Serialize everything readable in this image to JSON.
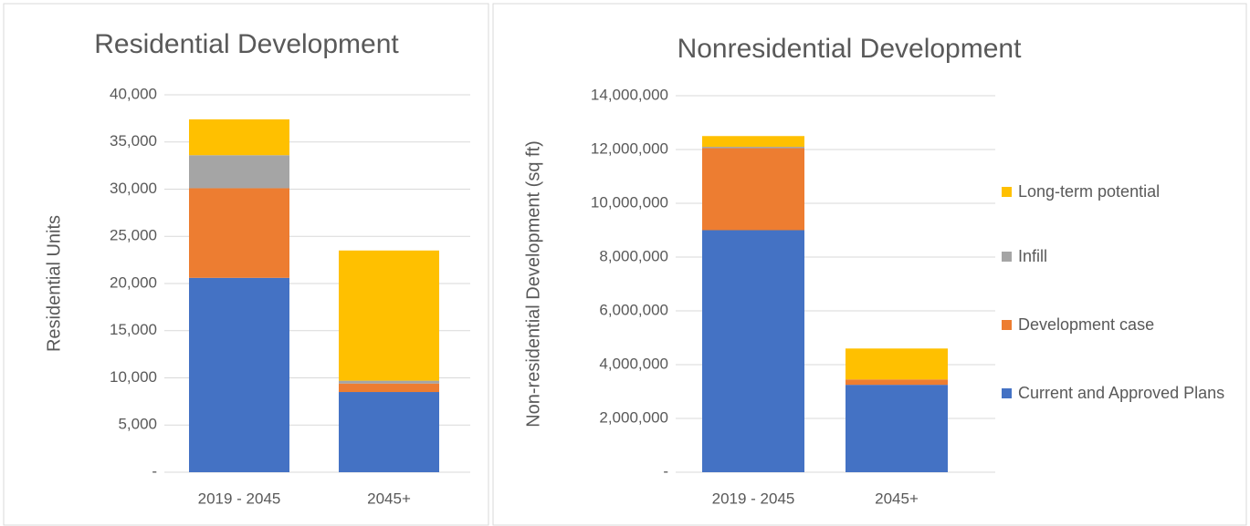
{
  "chart_data": [
    {
      "type": "stacked_bar",
      "title": "Residential Development",
      "y_label": "Residential Units",
      "categories": [
        "2019 - 2045",
        "2045+"
      ],
      "series": [
        {
          "color": "#4472c4",
          "values": [
            20600,
            8500
          ]
        },
        {
          "color": "#ed7d31",
          "values": [
            9500,
            900
          ]
        },
        {
          "color": "#a5a5a5",
          "values": [
            3500,
            300
          ]
        },
        {
          "color": "#ffc000",
          "values": [
            3800,
            13800
          ]
        }
      ],
      "ylim": [
        0,
        40000
      ],
      "yticks": [
        {
          "value": 0,
          "label": "-"
        },
        {
          "value": 5000,
          "label": "5,000"
        },
        {
          "value": 10000,
          "label": "10,000"
        },
        {
          "value": 15000,
          "label": "15,000"
        },
        {
          "value": 20000,
          "label": "20,000"
        },
        {
          "value": 25000,
          "label": "25,000"
        },
        {
          "value": 30000,
          "label": "30,000"
        },
        {
          "value": 35000,
          "label": "35,000"
        },
        {
          "value": 40000,
          "label": "40,000"
        }
      ],
      "grid": true
    },
    {
      "type": "stacked_bar",
      "title": "Nonresidential Development",
      "y_label": "Non-residential Development (sq ft)",
      "categories": [
        "2019 - 2045",
        "2045+"
      ],
      "series": [
        {
          "name": "Current and Approved Plans",
          "color": "#4472c4",
          "values": [
            9000000,
            3250000
          ]
        },
        {
          "name": "Development case",
          "color": "#ed7d31",
          "values": [
            3050000,
            200000
          ]
        },
        {
          "name": "Infill",
          "color": "#a5a5a5",
          "values": [
            50000,
            0
          ]
        },
        {
          "name": "Long-term potential",
          "color": "#ffc000",
          "values": [
            400000,
            1150000
          ]
        }
      ],
      "ylim": [
        0,
        14000000
      ],
      "yticks": [
        {
          "value": 0,
          "label": "-"
        },
        {
          "value": 2000000,
          "label": "2,000,000"
        },
        {
          "value": 4000000,
          "label": "4,000,000"
        },
        {
          "value": 6000000,
          "label": "6,000,000"
        },
        {
          "value": 8000000,
          "label": "8,000,000"
        },
        {
          "value": 10000000,
          "label": "10,000,000"
        },
        {
          "value": 12000000,
          "label": "12,000,000"
        },
        {
          "value": 14000000,
          "label": "14,000,000"
        }
      ],
      "grid": true,
      "legend": "right"
    }
  ]
}
